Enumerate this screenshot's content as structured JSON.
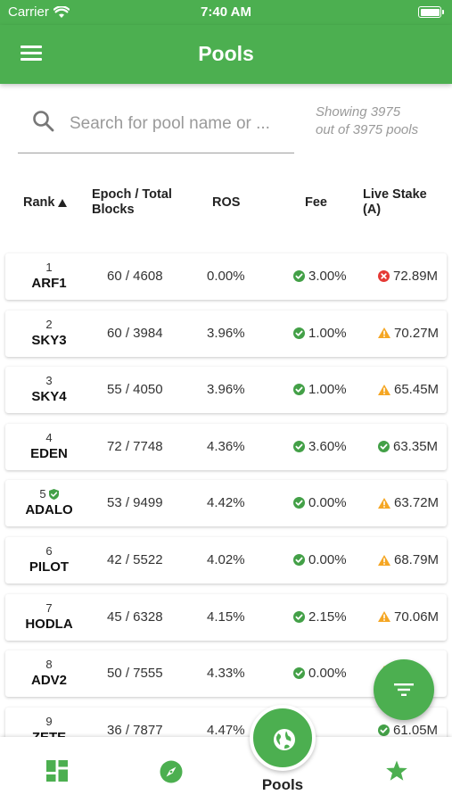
{
  "status_bar": {
    "carrier": "Carrier",
    "time": "7:40 AM"
  },
  "app_bar": {
    "title": "Pools",
    "menu_icon": "hamburger-menu-icon"
  },
  "search": {
    "placeholder": "Search for pool name or ...",
    "value": ""
  },
  "showing": {
    "line1": "Showing 3975",
    "line2": "out of 3975 pools"
  },
  "table": {
    "headers": {
      "rank": "Rank",
      "epoch_line1": "Epoch / Total",
      "epoch_line2": "Blocks",
      "ros": "ROS",
      "fee": "Fee",
      "stake_line1": "Live Stake",
      "stake_line2": "(A)"
    },
    "rows": [
      {
        "rank": "1",
        "ticker": "ARF1",
        "blocks": "60 / 4608",
        "ros": "0.00%",
        "fee": "3.00%",
        "stake": "72.89M",
        "stake_status": "error"
      },
      {
        "rank": "2",
        "ticker": "SKY3",
        "blocks": "60 / 3984",
        "ros": "3.96%",
        "fee": "1.00%",
        "stake": "70.27M",
        "stake_status": "warning"
      },
      {
        "rank": "3",
        "ticker": "SKY4",
        "blocks": "55 / 4050",
        "ros": "3.96%",
        "fee": "1.00%",
        "stake": "65.45M",
        "stake_status": "warning"
      },
      {
        "rank": "4",
        "ticker": "EDEN",
        "blocks": "72 / 7748",
        "ros": "4.36%",
        "fee": "3.60%",
        "stake": "63.35M",
        "stake_status": "ok"
      },
      {
        "rank": "5",
        "ticker": "ADALO",
        "blocks": "53 / 9499",
        "ros": "4.42%",
        "fee": "0.00%",
        "stake": "63.72M",
        "stake_status": "warning",
        "verified": true
      },
      {
        "rank": "6",
        "ticker": "PILOT",
        "blocks": "42 / 5522",
        "ros": "4.02%",
        "fee": "0.00%",
        "stake": "68.79M",
        "stake_status": "warning"
      },
      {
        "rank": "7",
        "ticker": "HODLA",
        "blocks": "45 / 6328",
        "ros": "4.15%",
        "fee": "2.15%",
        "stake": "70.06M",
        "stake_status": "warning"
      },
      {
        "rank": "8",
        "ticker": "ADV2",
        "blocks": "50 / 7555",
        "ros": "4.33%",
        "fee": "0.00%",
        "stake": "",
        "stake_status": "warning"
      },
      {
        "rank": "9",
        "ticker": "ZETE",
        "blocks": "36 / 7877",
        "ros": "4.47%",
        "fee": "",
        "stake": "61.05M",
        "stake_status": "ok"
      }
    ]
  },
  "bottom_nav": {
    "center_label": "Pools"
  },
  "colors": {
    "primary": "#4caf50",
    "ok": "#43a047",
    "warning": "#f5a623",
    "error": "#e53935"
  }
}
